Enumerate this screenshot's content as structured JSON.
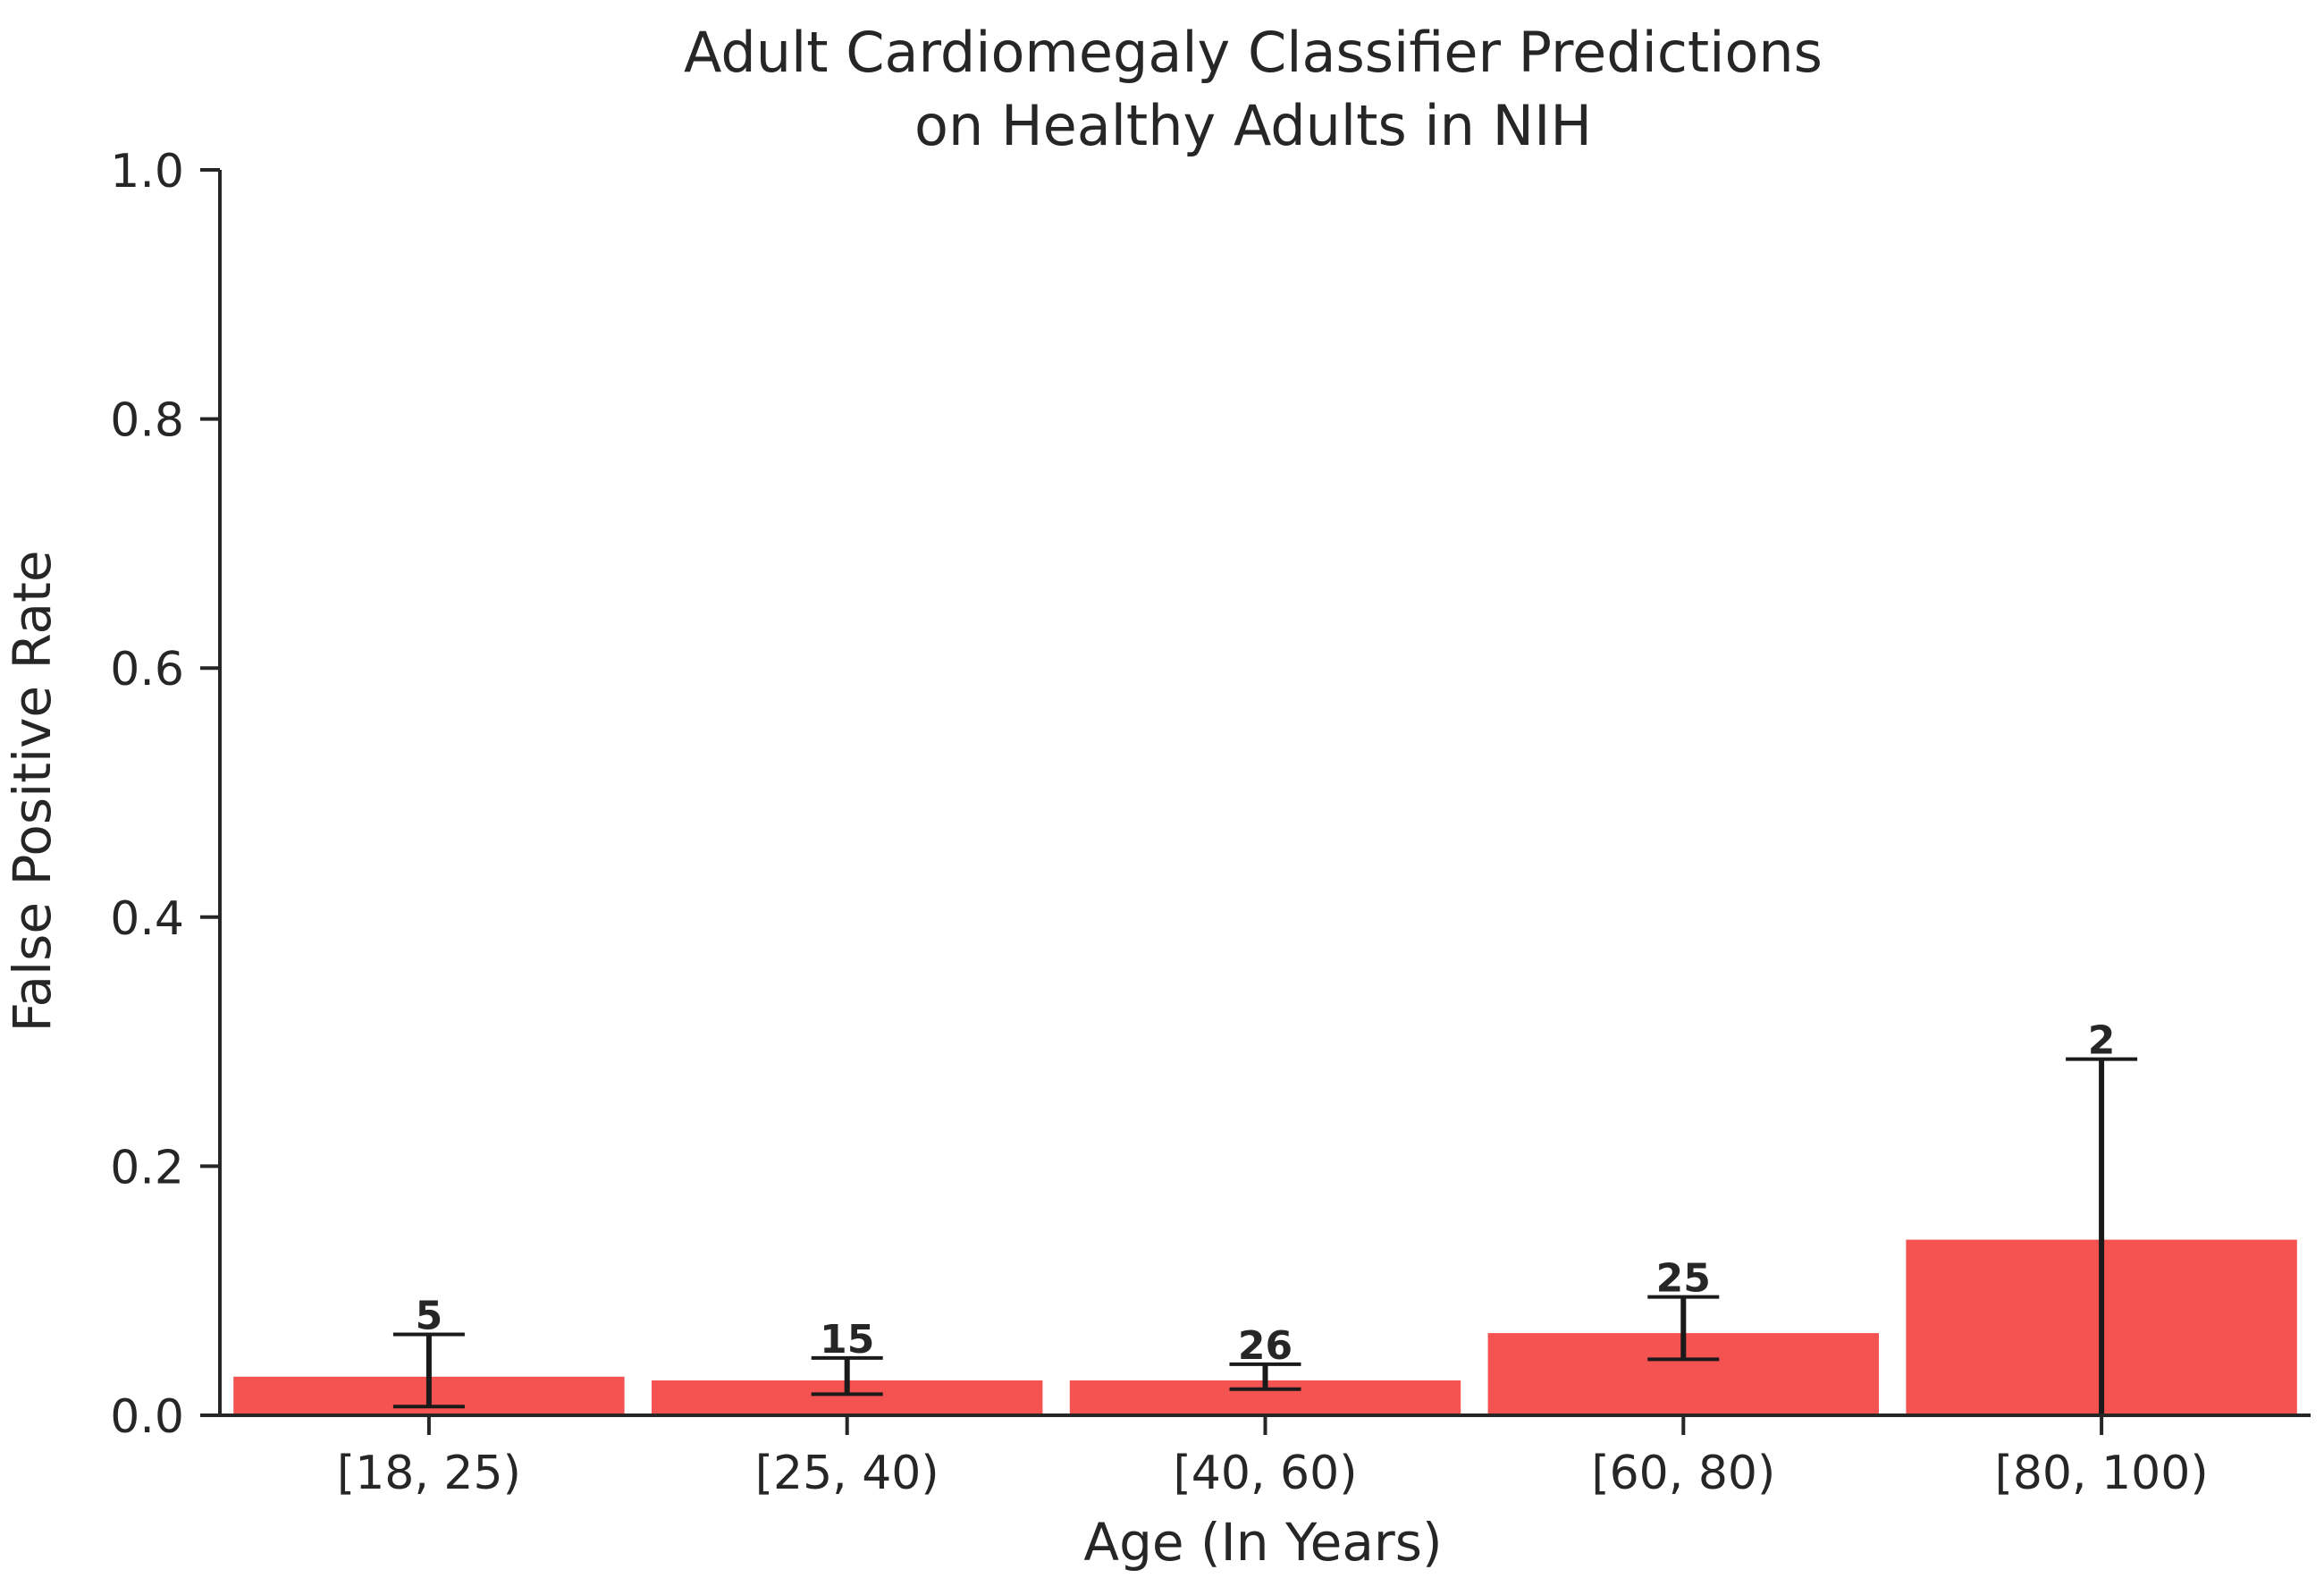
{
  "chart_data": {
    "type": "bar",
    "title_line1": "Adult Cardiomegaly Classifier Predictions",
    "title_line2": "on Healthy Adults in NIH",
    "xlabel": "Age (In Years)",
    "ylabel": "False Positive Rate",
    "ylim": [
      0,
      1.0
    ],
    "yticks": [
      "0.0",
      "0.2",
      "0.4",
      "0.6",
      "0.8",
      "1.0"
    ],
    "ytick_values": [
      0,
      0.2,
      0.4,
      0.6,
      0.8,
      1.0
    ],
    "categories": [
      "[18, 25)",
      "[25, 40)",
      "[40, 60)",
      "[60, 80)",
      "[80, 100)"
    ],
    "values": [
      0.031,
      0.028,
      0.028,
      0.066,
      0.141
    ],
    "error_low": [
      0.007,
      0.017,
      0.021,
      0.045,
      0.0
    ],
    "error_high": [
      0.065,
      0.046,
      0.041,
      0.095,
      0.286
    ],
    "counts": [
      "5",
      "15",
      "26",
      "25",
      "2"
    ],
    "bar_color": "#f55252",
    "error_color": "#1a1a1a",
    "grid": false,
    "legend": "none"
  }
}
